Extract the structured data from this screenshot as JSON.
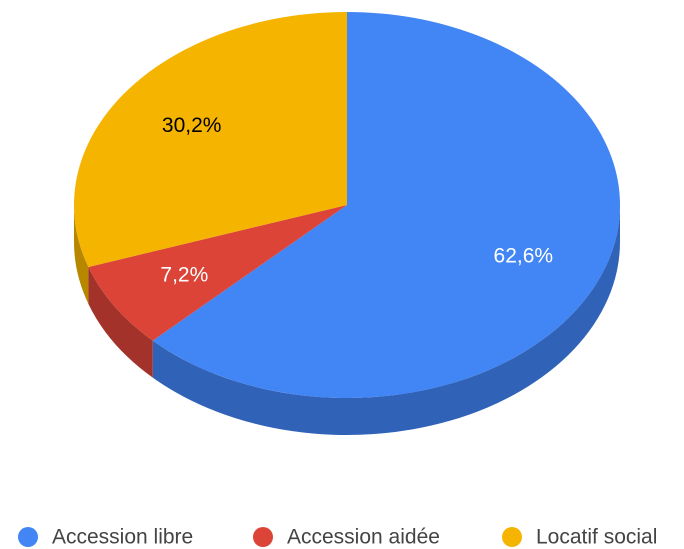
{
  "chart_data": {
    "type": "pie",
    "categories": [
      "Accession libre",
      "Accession aidée",
      "Locatif social"
    ],
    "values": [
      62.6,
      7.2,
      30.2
    ],
    "value_labels": [
      "62,6%",
      "7,2%",
      "30,2%"
    ],
    "colors": [
      "#4285f4",
      "#db4437",
      "#f4b400"
    ],
    "side_colors": [
      "#3062b8",
      "#a3322a",
      "#b78700"
    ],
    "label_colors": [
      "#ffffff",
      "#ffffff",
      "#000000"
    ],
    "legend": "bottom"
  }
}
